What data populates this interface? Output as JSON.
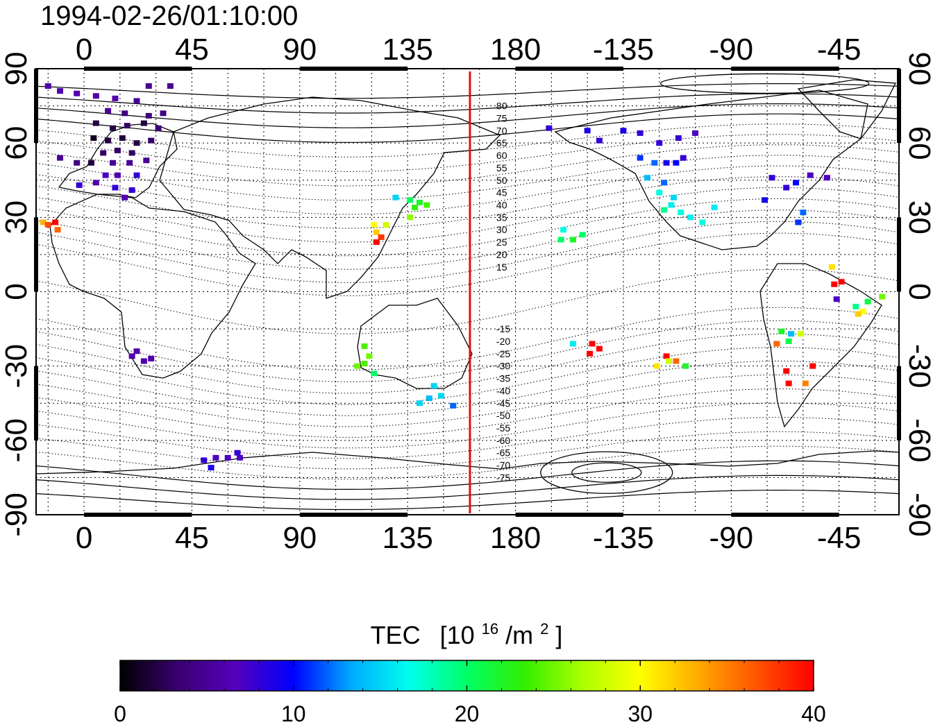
{
  "title": "1994-02-26/01:10:00",
  "map": {
    "lon_ticks_top": [
      "0",
      "45",
      "90",
      "135",
      "180",
      "-135",
      "-90",
      "-45"
    ],
    "lon_ticks_bottom": [
      "0",
      "45",
      "90",
      "135",
      "180",
      "-135",
      "-90",
      "-45"
    ],
    "lat_ticks_left": [
      "90",
      "60",
      "30",
      "0",
      "-30",
      "-60",
      "-90"
    ],
    "lat_ticks_right": [
      "90",
      "60",
      "30",
      "0",
      "-30",
      "-60",
      "-90"
    ],
    "lon_range": [
      -20,
      340
    ],
    "lat_range": [
      -90,
      90
    ],
    "terminator_lon": 161,
    "terminator_color": "#dd1111",
    "contour_labels": [
      "80",
      "75",
      "70",
      "65",
      "60",
      "55",
      "50",
      "45",
      "40",
      "35",
      "30",
      "25",
      "20",
      "15",
      "-15",
      "-20",
      "-25",
      "-30",
      "-35",
      "-40",
      "-45",
      "-50",
      "-55",
      "-60",
      "-65",
      "-70",
      "-75"
    ],
    "contour_label_lon": 172
  },
  "colorbar": {
    "label": "TEC",
    "unit_prefix": "[10",
    "unit_exp": "16",
    "unit_mid": "/m",
    "unit_sq": "2",
    "unit_suffix": "]",
    "ticks": [
      "0",
      "10",
      "20",
      "30",
      "40"
    ],
    "range": [
      0,
      40
    ],
    "colormap": [
      "#000000",
      "#3a0070",
      "#5500bb",
      "#0000ff",
      "#00aaff",
      "#00ffee",
      "#00ff66",
      "#33ee00",
      "#aaff00",
      "#ffff00",
      "#ffaa00",
      "#ff5500",
      "#ff0000"
    ]
  },
  "chart_data": {
    "type": "scatter",
    "title": "1994-02-26/01:10:00",
    "xlim": [
      -20,
      340
    ],
    "ylim": [
      -90,
      90
    ],
    "value_label": "TEC [10^16/m^2]",
    "value_range": [
      0,
      40
    ],
    "points": [
      {
        "lon": -15,
        "lat": 83,
        "tec": 6
      },
      {
        "lon": -10,
        "lat": 81,
        "tec": 6
      },
      {
        "lon": -3,
        "lat": 80,
        "tec": 6
      },
      {
        "lon": 5,
        "lat": 79,
        "tec": 6
      },
      {
        "lon": 13,
        "lat": 78,
        "tec": 6
      },
      {
        "lon": 27,
        "lat": 83,
        "tec": 5
      },
      {
        "lon": 36,
        "lat": 83,
        "tec": 5
      },
      {
        "lon": 22,
        "lat": 77,
        "tec": 5
      },
      {
        "lon": 10,
        "lat": 73,
        "tec": 5
      },
      {
        "lon": 17,
        "lat": 72,
        "tec": 4
      },
      {
        "lon": 27,
        "lat": 71,
        "tec": 4
      },
      {
        "lon": 33,
        "lat": 72,
        "tec": 4
      },
      {
        "lon": 5,
        "lat": 68,
        "tec": 2
      },
      {
        "lon": 12,
        "lat": 66,
        "tec": 2
      },
      {
        "lon": 18,
        "lat": 67,
        "tec": 3
      },
      {
        "lon": 25,
        "lat": 68,
        "tec": 2
      },
      {
        "lon": 31,
        "lat": 66,
        "tec": 4
      },
      {
        "lon": 4,
        "lat": 62,
        "tec": 1
      },
      {
        "lon": 10,
        "lat": 61,
        "tec": 2
      },
      {
        "lon": 16,
        "lat": 62,
        "tec": 2
      },
      {
        "lon": 22,
        "lat": 60,
        "tec": 2
      },
      {
        "lon": 28,
        "lat": 61,
        "tec": 3
      },
      {
        "lon": 14,
        "lat": 57,
        "tec": 3
      },
      {
        "lon": 20,
        "lat": 56,
        "tec": 3
      },
      {
        "lon": 8,
        "lat": 56,
        "tec": 3
      },
      {
        "lon": -10,
        "lat": 54,
        "tec": 5
      },
      {
        "lon": -3,
        "lat": 52,
        "tec": 4
      },
      {
        "lon": 3,
        "lat": 52,
        "tec": 2
      },
      {
        "lon": 12,
        "lat": 52,
        "tec": 5
      },
      {
        "lon": 19,
        "lat": 52,
        "tec": 5
      },
      {
        "lon": 26,
        "lat": 53,
        "tec": 5
      },
      {
        "lon": 9,
        "lat": 47,
        "tec": 7
      },
      {
        "lon": 14,
        "lat": 47,
        "tec": 6
      },
      {
        "lon": 22,
        "lat": 47,
        "tec": 8
      },
      {
        "lon": -2,
        "lat": 43,
        "tec": 8
      },
      {
        "lon": 5,
        "lat": 44,
        "tec": 6
      },
      {
        "lon": 13,
        "lat": 42,
        "tec": 8
      },
      {
        "lon": 20,
        "lat": 41,
        "tec": 8
      },
      {
        "lon": 17,
        "lat": 38,
        "tec": 6
      },
      {
        "lon": -17,
        "lat": 28,
        "tec": 33
      },
      {
        "lon": -15,
        "lat": 27,
        "tec": 37
      },
      {
        "lon": -12,
        "lat": 28,
        "tec": 40
      },
      {
        "lon": -11,
        "lat": 25,
        "tec": 36
      },
      {
        "lon": 20,
        "lat": -26,
        "tec": 6
      },
      {
        "lon": 22,
        "lat": -24,
        "tec": 6
      },
      {
        "lon": 25,
        "lat": -28,
        "tec": 6
      },
      {
        "lon": 28,
        "lat": -27,
        "tec": 6
      },
      {
        "lon": 50,
        "lat": -68,
        "tec": 8
      },
      {
        "lon": 55,
        "lat": -67,
        "tec": 7
      },
      {
        "lon": 60,
        "lat": -67,
        "tec": 7
      },
      {
        "lon": 64,
        "lat": -65,
        "tec": 8
      },
      {
        "lon": 65,
        "lat": -67,
        "tec": 7
      },
      {
        "lon": 53,
        "lat": -71,
        "tec": 9
      },
      {
        "lon": 130,
        "lat": 38,
        "tec": 15
      },
      {
        "lon": 136,
        "lat": 37,
        "tec": 20
      },
      {
        "lon": 140,
        "lat": 36,
        "tec": 22
      },
      {
        "lon": 143,
        "lat": 35,
        "tec": 24
      },
      {
        "lon": 138,
        "lat": 34,
        "tec": 23
      },
      {
        "lon": 136,
        "lat": 30,
        "tec": 26
      },
      {
        "lon": 121,
        "lat": 27,
        "tec": 30
      },
      {
        "lon": 126,
        "lat": 27,
        "tec": 28
      },
      {
        "lon": 122,
        "lat": 24,
        "tec": 32
      },
      {
        "lon": 124,
        "lat": 22,
        "tec": 38
      },
      {
        "lon": 122,
        "lat": 20,
        "tec": 40
      },
      {
        "lon": 117,
        "lat": -22,
        "tec": 24
      },
      {
        "lon": 119,
        "lat": -26,
        "tec": 25
      },
      {
        "lon": 114,
        "lat": -30,
        "tec": 25
      },
      {
        "lon": 117,
        "lat": -29,
        "tec": 24
      },
      {
        "lon": 121,
        "lat": -33,
        "tec": 20
      },
      {
        "lon": 146,
        "lat": -38,
        "tec": 15
      },
      {
        "lon": 144,
        "lat": -43,
        "tec": 14
      },
      {
        "lon": 149,
        "lat": -42,
        "tec": 15
      },
      {
        "lon": 154,
        "lat": -46,
        "tec": 12
      },
      {
        "lon": 140,
        "lat": -45,
        "tec": 15
      },
      {
        "lon": 194,
        "lat": 66,
        "tec": 8
      },
      {
        "lon": 210,
        "lat": 65,
        "tec": 9
      },
      {
        "lon": 215,
        "lat": 61,
        "tec": 8
      },
      {
        "lon": 225,
        "lat": 65,
        "tec": 9
      },
      {
        "lon": 232,
        "lat": 64,
        "tec": 8
      },
      {
        "lon": 240,
        "lat": 60,
        "tec": 8
      },
      {
        "lon": 248,
        "lat": 62,
        "tec": 8
      },
      {
        "lon": 255,
        "lat": 64,
        "tec": 7
      },
      {
        "lon": 232,
        "lat": 54,
        "tec": 11
      },
      {
        "lon": 238,
        "lat": 52,
        "tec": 12
      },
      {
        "lon": 243,
        "lat": 52,
        "tec": 9
      },
      {
        "lon": 247,
        "lat": 52,
        "tec": 10
      },
      {
        "lon": 250,
        "lat": 54,
        "tec": 8
      },
      {
        "lon": 235,
        "lat": 46,
        "tec": 14
      },
      {
        "lon": 242,
        "lat": 44,
        "tec": 12
      },
      {
        "lon": 240,
        "lat": 40,
        "tec": 17
      },
      {
        "lon": 246,
        "lat": 38,
        "tec": 15
      },
      {
        "lon": 245,
        "lat": 35,
        "tec": 16
      },
      {
        "lon": 249,
        "lat": 32,
        "tec": 17
      },
      {
        "lon": 253,
        "lat": 30,
        "tec": 16
      },
      {
        "lon": 258,
        "lat": 28,
        "tec": 17
      },
      {
        "lon": 242,
        "lat": 33,
        "tec": 19
      },
      {
        "lon": 263,
        "lat": 34,
        "tec": 16
      },
      {
        "lon": 287,
        "lat": 46,
        "tec": 8
      },
      {
        "lon": 293,
        "lat": 42,
        "tec": 8
      },
      {
        "lon": 297,
        "lat": 44,
        "tec": 10
      },
      {
        "lon": 284,
        "lat": 37,
        "tec": 9
      },
      {
        "lon": 303,
        "lat": 47,
        "tec": 7
      },
      {
        "lon": 310,
        "lat": 46,
        "tec": 7
      },
      {
        "lon": 300,
        "lat": 32,
        "tec": 12
      },
      {
        "lon": 298,
        "lat": 28,
        "tec": 11
      },
      {
        "lon": 200,
        "lat": 25,
        "tec": 17
      },
      {
        "lon": 204,
        "lat": 21,
        "tec": 22
      },
      {
        "lon": 208,
        "lat": 23,
        "tec": 20
      },
      {
        "lon": 199,
        "lat": 21,
        "tec": 20
      },
      {
        "lon": 212,
        "lat": -21,
        "tec": 40
      },
      {
        "lon": 215,
        "lat": -23,
        "tec": 40
      },
      {
        "lon": 211,
        "lat": -25,
        "tec": 40
      },
      {
        "lon": 204,
        "lat": -21,
        "tec": 16
      },
      {
        "lon": 243,
        "lat": -26,
        "tec": 40
      },
      {
        "lon": 247,
        "lat": -28,
        "tec": 36
      },
      {
        "lon": 244,
        "lat": -28,
        "tec": 28
      },
      {
        "lon": 251,
        "lat": -30,
        "tec": 22
      },
      {
        "lon": 239,
        "lat": -30,
        "tec": 31
      },
      {
        "lon": 313,
        "lat": 3,
        "tec": 40
      },
      {
        "lon": 316,
        "lat": 4,
        "tec": 40
      },
      {
        "lon": 312,
        "lat": 10,
        "tec": 31
      },
      {
        "lon": 314,
        "lat": -3,
        "tec": 7
      },
      {
        "lon": 322,
        "lat": -6,
        "tec": 19
      },
      {
        "lon": 327,
        "lat": -4,
        "tec": 21
      },
      {
        "lon": 325,
        "lat": -8,
        "tec": 30
      },
      {
        "lon": 323,
        "lat": -9,
        "tec": 32
      },
      {
        "lon": 333,
        "lat": -2,
        "tec": 25
      },
      {
        "lon": 291,
        "lat": -16,
        "tec": 22
      },
      {
        "lon": 294,
        "lat": -20,
        "tec": 21
      },
      {
        "lon": 289,
        "lat": -21,
        "tec": 36
      },
      {
        "lon": 295,
        "lat": -17,
        "tec": 14
      },
      {
        "lon": 299,
        "lat": -17,
        "tec": 28
      },
      {
        "lon": 293,
        "lat": -32,
        "tec": 40
      },
      {
        "lon": 294,
        "lat": -37,
        "tec": 40
      },
      {
        "lon": 304,
        "lat": -30,
        "tec": 40
      },
      {
        "lon": 301,
        "lat": -37,
        "tec": 35
      }
    ]
  }
}
